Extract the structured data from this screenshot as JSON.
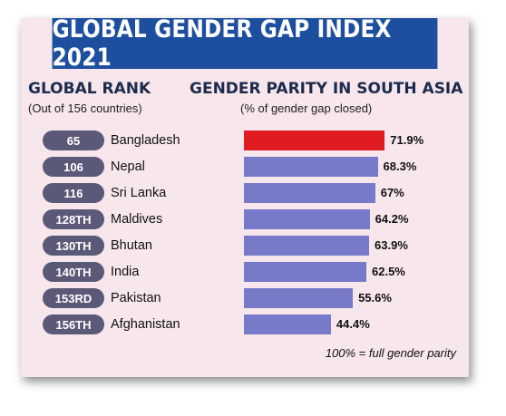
{
  "title": "GLOBAL GENDER GAP INDEX 2021",
  "left_header": "GLOBAL RANK",
  "left_subheader": "(Out of 156 countries)",
  "right_header": "GENDER PARITY IN SOUTH ASIA",
  "right_subheader": "(% of gender gap closed)",
  "note": "100% = full gender parity",
  "colors": {
    "banner": "#1d4f9e",
    "background": "#f7e6ec",
    "highlight_bar": "#e11b22",
    "bar": "#7779c9",
    "rank_pill": "#5a5a78"
  },
  "chart_data": {
    "type": "bar",
    "orientation": "horizontal",
    "title": "GENDER PARITY IN SOUTH ASIA",
    "subtitle": "(% of gender gap closed)",
    "categories": [
      "Bangladesh",
      "Nepal",
      "Sri Lanka",
      "Maldives",
      "Bhutan",
      "India",
      "Pakistan",
      "Afghanistan"
    ],
    "values": [
      71.9,
      68.3,
      67,
      64.2,
      63.9,
      62.5,
      55.6,
      44.4
    ],
    "value_labels": [
      "71.9%",
      "68.3%",
      "67%",
      "64.2%",
      "63.9%",
      "62.5%",
      "55.6%",
      "44.4%"
    ],
    "ranks": [
      "65",
      "106",
      "116",
      "128TH",
      "130TH",
      "140TH",
      "153RD",
      "156TH"
    ],
    "highlight_index": 0,
    "xlim": [
      0,
      100
    ],
    "grid": false,
    "legend": "none"
  }
}
